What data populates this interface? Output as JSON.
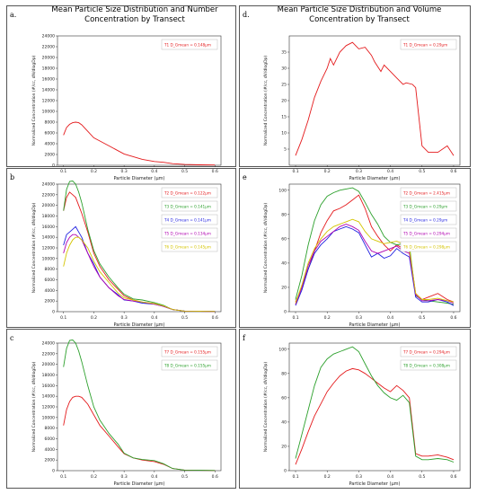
{
  "titles": {
    "left": [
      "Mean Particle Size Distribution and Number",
      "Concentration by Transect"
    ],
    "right": [
      "Mean Particle Size Distribution and Volume",
      "Concentration by Transect"
    ]
  },
  "chart_data": [
    {
      "panel": "a.",
      "type": "line",
      "xlabel": "Particle Diameter (μm)",
      "ylabel": "Normalized Concentration (#/cc, dN/dlogDp)",
      "xlim": [
        0.08,
        0.62
      ],
      "ylim": [
        0,
        24000
      ],
      "xticks": [
        "0.1",
        "0.2",
        "0.3",
        "0.4",
        "0.5",
        "0.6"
      ],
      "yticks": [
        "0",
        "2000",
        "4000",
        "6000",
        "8000",
        "10000",
        "12000",
        "14000",
        "16000",
        "18000",
        "20000",
        "22000",
        "24000"
      ],
      "legend_position": "top-right",
      "series": [
        {
          "name": "T1 D_Gmean = 0.148μm",
          "color": "#e41a1c",
          "x": [
            0.1,
            0.11,
            0.12,
            0.13,
            0.14,
            0.15,
            0.16,
            0.17,
            0.18,
            0.2,
            0.22,
            0.25,
            0.28,
            0.3,
            0.33,
            0.36,
            0.4,
            0.43,
            0.46,
            0.5,
            0.55,
            0.6
          ],
          "y": [
            5600,
            7000,
            7600,
            7900,
            8000,
            7900,
            7500,
            6900,
            6300,
            5100,
            4500,
            3600,
            2700,
            2100,
            1600,
            1100,
            700,
            550,
            300,
            150,
            80,
            50
          ]
        }
      ]
    },
    {
      "panel": "d.",
      "type": "line",
      "xlabel": "Particle Diameter (μm)",
      "ylabel": "Normalized Concentration (#/cc, dV/dlogDp)",
      "xlim": [
        0.08,
        0.62
      ],
      "ylim": [
        0,
        40
      ],
      "xticks": [
        "0.1",
        "0.2",
        "0.3",
        "0.4",
        "0.5",
        "0.6"
      ],
      "yticks": [
        "5",
        "10",
        "15",
        "20",
        "25",
        "30",
        "35"
      ],
      "legend_position": "top-right",
      "series": [
        {
          "name": "T1 D_Gmean = 0.29μm",
          "color": "#e41a1c",
          "x": [
            0.1,
            0.12,
            0.14,
            0.16,
            0.18,
            0.2,
            0.21,
            0.22,
            0.24,
            0.26,
            0.28,
            0.29,
            0.3,
            0.32,
            0.34,
            0.35,
            0.37,
            0.38,
            0.4,
            0.42,
            0.44,
            0.45,
            0.47,
            0.48,
            0.5,
            0.52,
            0.55,
            0.58,
            0.6
          ],
          "y": [
            3,
            8,
            14,
            21,
            26,
            30,
            33,
            31,
            35,
            37,
            38,
            37,
            36,
            36.5,
            34,
            32,
            29,
            31,
            29,
            27,
            25,
            25.5,
            25,
            24,
            6,
            4,
            4,
            6,
            3
          ]
        }
      ]
    },
    {
      "panel": "b",
      "type": "line",
      "xlabel": "Particle Diameter (μm)",
      "ylabel": "Normalized Concentration (#/cc, dN/dlogDp)",
      "xlim": [
        0.08,
        0.62
      ],
      "ylim": [
        0,
        24000
      ],
      "xticks": [
        "0.1",
        "0.2",
        "0.3",
        "0.4",
        "0.5",
        "0.6"
      ],
      "yticks": [
        "0",
        "2000",
        "4000",
        "6000",
        "8000",
        "10000",
        "12000",
        "14000",
        "16000",
        "18000",
        "20000",
        "22000",
        "24000"
      ],
      "legend_position": "top-right",
      "series": [
        {
          "name": "T2 D_Gmean = 0.122μm",
          "color": "#e41a1c",
          "x": [
            0.1,
            0.11,
            0.12,
            0.13,
            0.14,
            0.15,
            0.16,
            0.18,
            0.2,
            0.22,
            0.25,
            0.28,
            0.3,
            0.33,
            0.36,
            0.4,
            0.43,
            0.46,
            0.5,
            0.55,
            0.6
          ],
          "y": [
            19000,
            21500,
            22500,
            22000,
            21500,
            20000,
            18500,
            15000,
            11000,
            8500,
            6000,
            4200,
            3000,
            2200,
            1800,
            1500,
            1000,
            400,
            100,
            80,
            40
          ]
        },
        {
          "name": "T3 D_Gmean = 0.141μm",
          "color": "#2ca02c",
          "x": [
            0.1,
            0.11,
            0.12,
            0.13,
            0.14,
            0.15,
            0.16,
            0.18,
            0.2,
            0.22,
            0.25,
            0.28,
            0.3,
            0.33,
            0.36,
            0.4,
            0.43,
            0.46,
            0.5,
            0.55,
            0.6
          ],
          "y": [
            19000,
            23000,
            24500,
            24600,
            24000,
            22500,
            20500,
            15500,
            11500,
            9000,
            6500,
            4500,
            3300,
            2400,
            2200,
            1700,
            1200,
            400,
            120,
            80,
            50
          ]
        },
        {
          "name": "T4 D_Gmean = 0.141μm",
          "color": "#1f1fe0",
          "x": [
            0.1,
            0.11,
            0.12,
            0.13,
            0.14,
            0.15,
            0.16,
            0.18,
            0.2,
            0.22,
            0.25,
            0.28,
            0.3,
            0.33,
            0.36,
            0.4,
            0.43,
            0.46,
            0.5,
            0.55,
            0.6
          ],
          "y": [
            12500,
            14500,
            15000,
            15500,
            16000,
            15000,
            14000,
            11000,
            9000,
            6500,
            4500,
            3200,
            2200,
            2000,
            1600,
            1400,
            1000,
            400,
            100,
            60,
            40
          ]
        },
        {
          "name": "T5 D_Gmean = 0.134μm",
          "color": "#b000b0",
          "x": [
            0.1,
            0.11,
            0.12,
            0.13,
            0.14,
            0.15,
            0.16,
            0.18,
            0.2,
            0.22,
            0.25,
            0.28,
            0.3,
            0.33,
            0.36,
            0.4,
            0.43,
            0.46,
            0.5,
            0.55,
            0.6
          ],
          "y": [
            11000,
            13000,
            14000,
            14500,
            14500,
            14000,
            13500,
            11000,
            8500,
            6500,
            4500,
            3000,
            2300,
            2000,
            1800,
            1400,
            1000,
            400,
            100,
            60,
            40
          ]
        },
        {
          "name": "T6 D_Gmean = 0.145μm",
          "color": "#d4c400",
          "x": [
            0.1,
            0.11,
            0.12,
            0.13,
            0.14,
            0.15,
            0.16,
            0.18,
            0.2,
            0.22,
            0.25,
            0.28,
            0.3,
            0.33,
            0.36,
            0.4,
            0.43,
            0.46,
            0.5,
            0.55,
            0.6
          ],
          "y": [
            8500,
            11000,
            12500,
            13500,
            14000,
            14000,
            13500,
            12000,
            9500,
            7500,
            5500,
            3500,
            2600,
            2200,
            1800,
            1500,
            1100,
            400,
            100,
            60,
            40
          ]
        }
      ]
    },
    {
      "panel": "e",
      "type": "line",
      "xlabel": "Particle Diameter (μm)",
      "ylabel": "Normalized Concentration (#/cc, dV/dlogDp)",
      "xlim": [
        0.08,
        0.62
      ],
      "ylim": [
        0,
        105
      ],
      "xticks": [
        "0.1",
        "0.2",
        "0.3",
        "0.4",
        "0.5",
        "0.6"
      ],
      "yticks": [
        "0",
        "20",
        "40",
        "60",
        "80",
        "100"
      ],
      "legend_position": "top-right",
      "series": [
        {
          "name": "T2 D_Gmean = 2.415μm",
          "color": "#e41a1c",
          "x": [
            0.1,
            0.12,
            0.14,
            0.16,
            0.18,
            0.2,
            0.22,
            0.24,
            0.26,
            0.28,
            0.3,
            0.32,
            0.34,
            0.36,
            0.38,
            0.4,
            0.42,
            0.44,
            0.46,
            0.48,
            0.5,
            0.52,
            0.55,
            0.58,
            0.6
          ],
          "y": [
            8,
            20,
            35,
            50,
            65,
            75,
            83,
            85,
            88,
            92,
            96,
            85,
            70,
            62,
            55,
            50,
            55,
            52,
            50,
            15,
            10,
            12,
            15,
            10,
            8
          ]
        },
        {
          "name": "T3 D_Gmean = 0.29μm",
          "color": "#2ca02c",
          "x": [
            0.1,
            0.12,
            0.14,
            0.16,
            0.18,
            0.2,
            0.22,
            0.24,
            0.26,
            0.28,
            0.3,
            0.32,
            0.34,
            0.36,
            0.38,
            0.4,
            0.42,
            0.44,
            0.46,
            0.48,
            0.5,
            0.52,
            0.55,
            0.58,
            0.6
          ],
          "y": [
            10,
            30,
            55,
            75,
            88,
            95,
            98,
            100,
            101,
            102,
            99,
            90,
            80,
            72,
            62,
            57,
            55,
            56,
            55,
            13,
            10,
            9,
            8,
            7,
            6
          ]
        },
        {
          "name": "T4 D_Gmean = 0.29μm",
          "color": "#1f1fe0",
          "x": [
            0.1,
            0.12,
            0.14,
            0.16,
            0.18,
            0.2,
            0.22,
            0.24,
            0.26,
            0.28,
            0.3,
            0.32,
            0.34,
            0.36,
            0.38,
            0.4,
            0.42,
            0.44,
            0.46,
            0.48,
            0.5,
            0.52,
            0.55,
            0.58,
            0.6
          ],
          "y": [
            5,
            18,
            35,
            48,
            55,
            60,
            66,
            68,
            70,
            68,
            65,
            55,
            45,
            48,
            44,
            46,
            52,
            48,
            45,
            12,
            8,
            8,
            10,
            8,
            5
          ]
        },
        {
          "name": "T5 D_Gmean = 0.294μm",
          "color": "#b000b0",
          "x": [
            0.1,
            0.12,
            0.14,
            0.16,
            0.18,
            0.2,
            0.22,
            0.24,
            0.26,
            0.28,
            0.3,
            0.32,
            0.34,
            0.36,
            0.38,
            0.4,
            0.42,
            0.44,
            0.46,
            0.48,
            0.5,
            0.52,
            0.55,
            0.58,
            0.6
          ],
          "y": [
            6,
            20,
            38,
            50,
            58,
            62,
            66,
            70,
            72,
            70,
            67,
            58,
            50,
            48,
            50,
            52,
            54,
            50,
            48,
            14,
            9,
            9,
            10,
            9,
            7
          ]
        },
        {
          "name": "T6 D_Gmean = 0.298μm",
          "color": "#d4c400",
          "x": [
            0.1,
            0.12,
            0.14,
            0.16,
            0.18,
            0.2,
            0.22,
            0.24,
            0.26,
            0.28,
            0.3,
            0.32,
            0.34,
            0.36,
            0.38,
            0.4,
            0.42,
            0.44,
            0.46,
            0.48,
            0.5,
            0.52,
            0.55,
            0.58,
            0.6
          ],
          "y": [
            7,
            22,
            40,
            52,
            60,
            66,
            70,
            72,
            74,
            76,
            74,
            66,
            60,
            58,
            56,
            57,
            58,
            56,
            52,
            15,
            10,
            10,
            11,
            9,
            8
          ]
        }
      ]
    },
    {
      "panel": "c",
      "type": "line",
      "xlabel": "Particle Diameter (μm)",
      "ylabel": "Normalized Concentration (#/cc, dN/dlogDp)",
      "xlim": [
        0.08,
        0.62
      ],
      "ylim": [
        0,
        24000
      ],
      "xticks": [
        "0.1",
        "0.2",
        "0.3",
        "0.4",
        "0.5",
        "0.6"
      ],
      "yticks": [
        "0",
        "2000",
        "4000",
        "6000",
        "8000",
        "10000",
        "12000",
        "14000",
        "16000",
        "18000",
        "20000",
        "22000",
        "24000"
      ],
      "legend_position": "top-right",
      "series": [
        {
          "name": "T7 D_Gmean = 0.155μm",
          "color": "#e41a1c",
          "x": [
            0.1,
            0.11,
            0.12,
            0.13,
            0.14,
            0.15,
            0.16,
            0.18,
            0.2,
            0.22,
            0.25,
            0.28,
            0.3,
            0.33,
            0.36,
            0.4,
            0.43,
            0.46,
            0.5,
            0.55,
            0.6
          ],
          "y": [
            8500,
            11500,
            13000,
            13800,
            14000,
            14000,
            13800,
            12500,
            10500,
            8500,
            6500,
            4500,
            3200,
            2400,
            2000,
            1700,
            1200,
            400,
            100,
            60,
            40
          ]
        },
        {
          "name": "T8 D_Gmean = 0.155μm",
          "color": "#2ca02c",
          "x": [
            0.1,
            0.11,
            0.12,
            0.13,
            0.14,
            0.15,
            0.16,
            0.18,
            0.2,
            0.22,
            0.25,
            0.28,
            0.3,
            0.33,
            0.36,
            0.4,
            0.43,
            0.46,
            0.5,
            0.55,
            0.6
          ],
          "y": [
            19500,
            23000,
            24500,
            24600,
            24000,
            22500,
            20500,
            16000,
            12000,
            9500,
            7000,
            5000,
            3300,
            2400,
            2100,
            1900,
            1300,
            400,
            100,
            60,
            40
          ]
        }
      ]
    },
    {
      "panel": "f",
      "type": "line",
      "xlabel": "Particle Diameter (μm)",
      "ylabel": "Normalized Concentration (#/cc, dV/dlogDp)",
      "xlim": [
        0.08,
        0.62
      ],
      "ylim": [
        0,
        105
      ],
      "xticks": [
        "0.1",
        "0.2",
        "0.3",
        "0.4",
        "0.5",
        "0.6"
      ],
      "yticks": [
        "0",
        "20",
        "40",
        "60",
        "80",
        "100"
      ],
      "legend_position": "top-right",
      "series": [
        {
          "name": "T7 D_Gmean = 0.294μm",
          "color": "#e41a1c",
          "x": [
            0.1,
            0.12,
            0.14,
            0.16,
            0.18,
            0.2,
            0.22,
            0.24,
            0.26,
            0.28,
            0.3,
            0.32,
            0.34,
            0.36,
            0.38,
            0.4,
            0.42,
            0.44,
            0.46,
            0.48,
            0.5,
            0.52,
            0.55,
            0.58,
            0.6
          ],
          "y": [
            5,
            18,
            32,
            45,
            55,
            65,
            72,
            78,
            82,
            84,
            83,
            80,
            76,
            72,
            68,
            65,
            70,
            66,
            60,
            14,
            12,
            12,
            13,
            11,
            9
          ]
        },
        {
          "name": "T8 D_Gmean = 0.308μm",
          "color": "#2ca02c",
          "x": [
            0.1,
            0.12,
            0.14,
            0.16,
            0.18,
            0.2,
            0.22,
            0.24,
            0.26,
            0.28,
            0.3,
            0.32,
            0.34,
            0.36,
            0.38,
            0.4,
            0.42,
            0.44,
            0.46,
            0.48,
            0.5,
            0.52,
            0.55,
            0.58,
            0.6
          ],
          "y": [
            10,
            30,
            50,
            70,
            85,
            92,
            96,
            98,
            100,
            102,
            98,
            88,
            78,
            70,
            64,
            60,
            58,
            62,
            56,
            12,
            9,
            9,
            10,
            9,
            7
          ]
        }
      ]
    }
  ]
}
